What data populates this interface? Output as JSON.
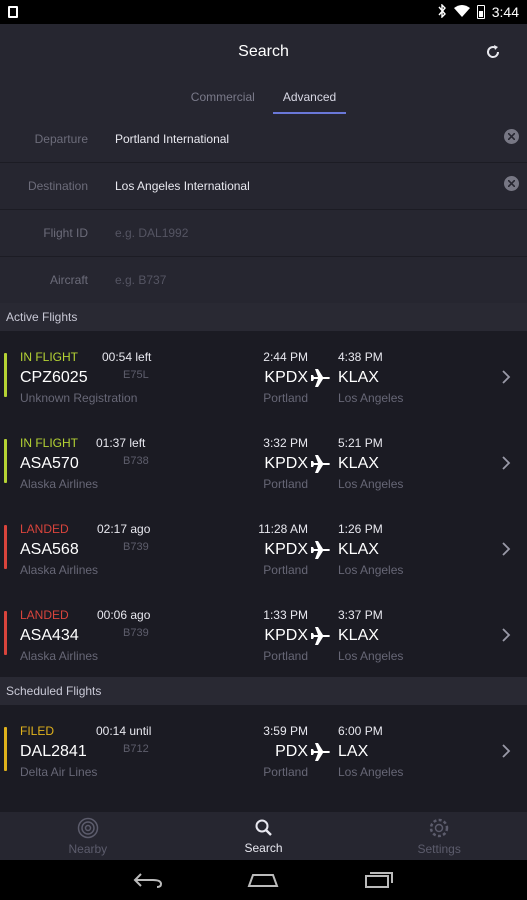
{
  "status_bar": {
    "time": "3:44"
  },
  "header": {
    "title": "Search",
    "tabs": [
      {
        "label": "Commercial",
        "active": false
      },
      {
        "label": "Advanced",
        "active": true
      }
    ]
  },
  "search_form": {
    "departure": {
      "label": "Departure",
      "value": "Portland International"
    },
    "destination": {
      "label": "Destination",
      "value": "Los Angeles International"
    },
    "flight_id": {
      "label": "Flight ID",
      "placeholder": "e.g. DAL1992"
    },
    "aircraft": {
      "label": "Aircraft",
      "placeholder": "e.g. B737"
    }
  },
  "active_section": {
    "title": "Active Flights"
  },
  "scheduled_section": {
    "title": "Scheduled Flights"
  },
  "active_flights": [
    {
      "status": "IN FLIGHT",
      "status_color": "#b5d334",
      "time_info": "00:54 left",
      "ident": "CPZ6025",
      "aircraft_type": "E75L",
      "airline": "Unknown Registration",
      "dep_time": "2:44 PM",
      "arr_time": "4:38 PM",
      "dep_code": "KPDX",
      "arr_code": "KLAX",
      "dep_city": "Portland",
      "arr_city": "Los Angeles"
    },
    {
      "status": "IN FLIGHT",
      "status_color": "#b5d334",
      "time_info": "01:37 left",
      "ident": "ASA570",
      "aircraft_type": "B738",
      "airline": "Alaska Airlines",
      "dep_time": "3:32 PM",
      "arr_time": "5:21 PM",
      "dep_code": "KPDX",
      "arr_code": "KLAX",
      "dep_city": "Portland",
      "arr_city": "Los Angeles"
    },
    {
      "status": "LANDED",
      "status_color": "#d9443c",
      "time_info": "02:17 ago",
      "ident": "ASA568",
      "aircraft_type": "B739",
      "airline": "Alaska Airlines",
      "dep_time": "11:28 AM",
      "arr_time": "1:26 PM",
      "dep_code": "KPDX",
      "arr_code": "KLAX",
      "dep_city": "Portland",
      "arr_city": "Los Angeles"
    },
    {
      "status": "LANDED",
      "status_color": "#d9443c",
      "time_info": "00:06 ago",
      "ident": "ASA434",
      "aircraft_type": "B739",
      "airline": "Alaska Airlines",
      "dep_time": "1:33 PM",
      "arr_time": "3:37 PM",
      "dep_code": "KPDX",
      "arr_code": "KLAX",
      "dep_city": "Portland",
      "arr_city": "Los Angeles"
    }
  ],
  "scheduled_flights": [
    {
      "status": "FILED",
      "status_color": "#e0b21c",
      "time_info": "00:14 until",
      "ident": "DAL2841",
      "aircraft_type": "B712",
      "airline": "Delta Air Lines",
      "dep_time": "3:59 PM",
      "arr_time": "6:00 PM",
      "dep_code": "PDX",
      "arr_code": "LAX",
      "dep_city": "Portland",
      "arr_city": "Los Angeles"
    }
  ],
  "bottom_nav": [
    {
      "label": "Nearby",
      "icon": "radar-icon",
      "active": false
    },
    {
      "label": "Search",
      "icon": "search-icon",
      "active": true
    },
    {
      "label": "Settings",
      "icon": "gear-icon",
      "active": false
    }
  ],
  "colors": {
    "accent": "#6a78d8",
    "in_flight": "#b5d334",
    "landed": "#d9443c",
    "filed": "#e0b21c"
  }
}
